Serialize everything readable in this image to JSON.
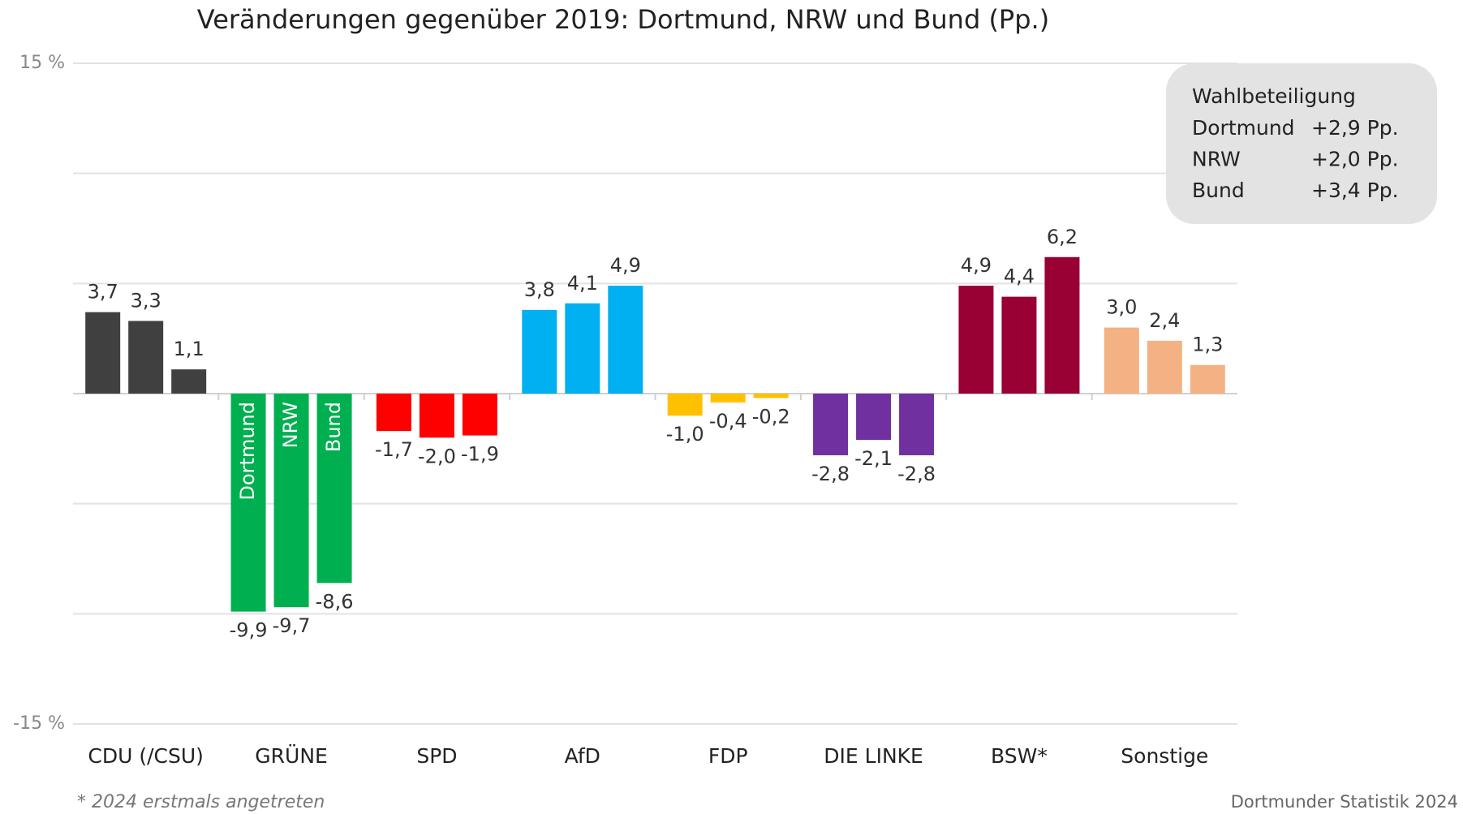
{
  "chart_data": {
    "type": "bar",
    "title": "Veränderungen gegenüber 2019: Dortmund, NRW und Bund (Pp.)",
    "categories": [
      "CDU (/CSU)",
      "GRÜNE",
      "SPD",
      "AfD",
      "FDP",
      "DIE LINKE",
      "BSW*",
      "Sonstige"
    ],
    "category_colors": [
      "#404040",
      "#00b050",
      "#ff0000",
      "#00b0f0",
      "#ffc000",
      "#7030a0",
      "#990033",
      "#f4b183"
    ],
    "series": [
      {
        "name": "Dortmund",
        "values": [
          3.7,
          -9.9,
          -1.7,
          3.8,
          -1.0,
          -2.8,
          4.9,
          3.0
        ],
        "value_labels": [
          "3,7",
          "-9,9",
          "-1,7",
          "3,8",
          "-1,0",
          "-2,8",
          "4,9",
          "3,0"
        ]
      },
      {
        "name": "NRW",
        "values": [
          3.3,
          -9.7,
          -2.0,
          4.1,
          -0.4,
          -2.1,
          4.4,
          2.4
        ],
        "value_labels": [
          "3,3",
          "-9,7",
          "-2,0",
          "4,1",
          "-0,4",
          "-2,1",
          "4,4",
          "2,4"
        ]
      },
      {
        "name": "Bund",
        "values": [
          1.1,
          -8.6,
          -1.9,
          4.9,
          -0.2,
          -2.8,
          6.2,
          1.3
        ],
        "value_labels": [
          "1,1",
          "-8,6",
          "-1,9",
          "4,9",
          "-0,2",
          "-2,8",
          "6,2",
          "1,3"
        ]
      }
    ],
    "series_label_category": 1,
    "ylim": [
      -15,
      15
    ],
    "yticks": [
      {
        "value": -15,
        "label": "-15 %"
      },
      {
        "value": 15,
        "label": "15 %"
      }
    ],
    "ygrid": [
      -10,
      -5,
      0,
      5,
      10
    ],
    "annotation": {
      "title": "Wahlbeteiligung",
      "rows": [
        [
          "Dortmund",
          "+2,9 Pp."
        ],
        [
          "NRW",
          "+2,0 Pp."
        ],
        [
          "Bund",
          "+3,4 Pp."
        ]
      ]
    },
    "footnote": "* 2024 erstmals angetreten",
    "source": "Dortmunder Statistik 2024"
  }
}
